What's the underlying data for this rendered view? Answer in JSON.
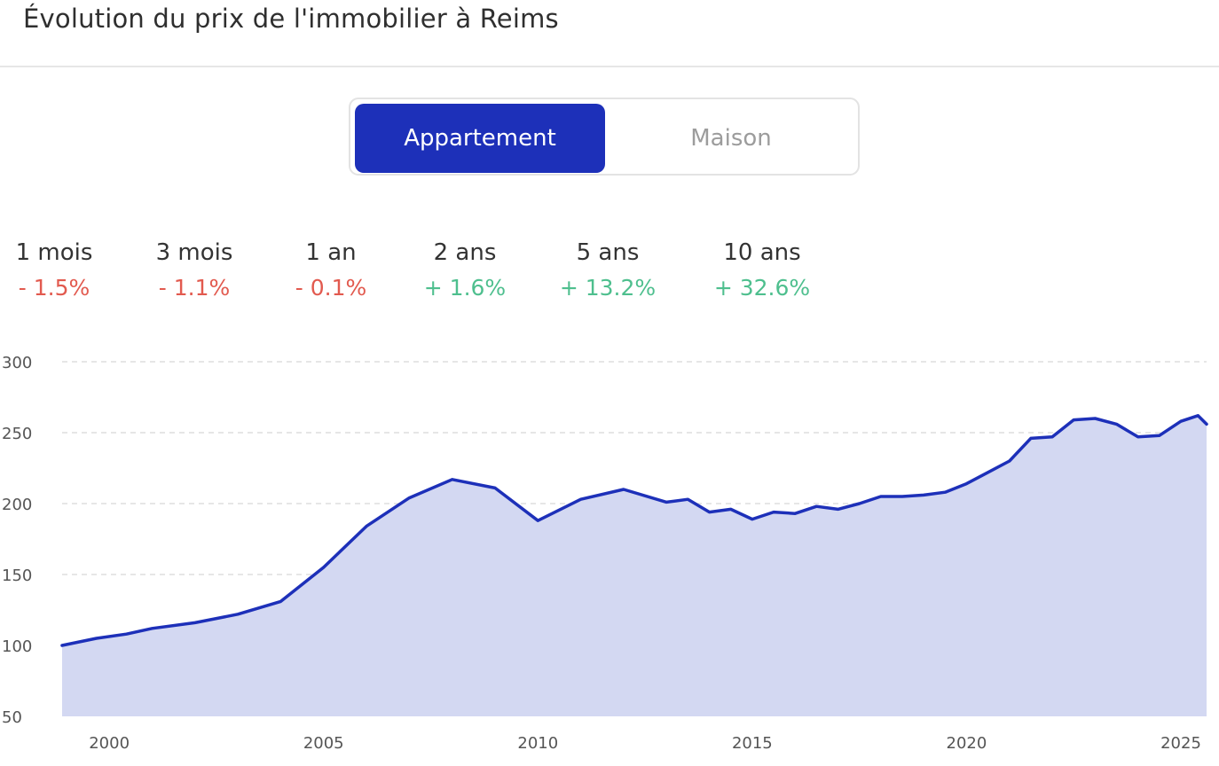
{
  "header": {
    "title": "Évolution du prix de l'immobilier à Reims"
  },
  "toggle": {
    "options": [
      "Appartement",
      "Maison"
    ],
    "selected": "Appartement"
  },
  "stats": [
    {
      "label": "1 mois",
      "value": "- 1.5%",
      "trend": "negative"
    },
    {
      "label": "3 mois",
      "value": "- 1.1%",
      "trend": "negative"
    },
    {
      "label": "1 an",
      "value": "- 0.1%",
      "trend": "negative"
    },
    {
      "label": "2 ans",
      "value": "+ 1.6%",
      "trend": "positive"
    },
    {
      "label": "5 ans",
      "value": "+ 13.2%",
      "trend": "positive"
    },
    {
      "label": "10 ans",
      "value": "+ 32.6%",
      "trend": "positive"
    }
  ],
  "colors": {
    "accent": "#1d30b9",
    "area_fill": "#d3d8f2",
    "negative": "#e25a4f",
    "positive": "#4ebf8e",
    "grid": "#dddddd"
  },
  "chart_data": {
    "type": "area",
    "title": "",
    "xlabel": "",
    "ylabel": "",
    "xlim": [
      1998.9,
      2025.6
    ],
    "ylim": [
      50,
      300
    ],
    "y_ticks": [
      300,
      250,
      200,
      150,
      100,
      50
    ],
    "x_ticks": [
      2000,
      2005,
      2010,
      2015,
      2020,
      2025
    ],
    "grid": true,
    "grid_style": "dashed",
    "x_tick_positions": [
      2000,
      2005,
      2010,
      2015,
      2020,
      2025
    ],
    "series": [
      {
        "x": [
          1998.9,
          1999.7,
          2000.4,
          2001.0,
          2002.0,
          2003.0,
          2004.0,
          2005.0,
          2006.0,
          2007.0,
          2008.0,
          2009.0,
          2010.0,
          2011.0,
          2012.0,
          2013.0,
          2013.5,
          2014.0,
          2014.5,
          2015.0,
          2015.5,
          2016.0,
          2016.5,
          2017.0,
          2017.5,
          2018.0,
          2018.5,
          2019.0,
          2019.5,
          2020.0,
          2020.5,
          2021.0,
          2021.5,
          2022.0,
          2022.5,
          2023.0,
          2023.5,
          2024.0,
          2024.5,
          2025.0,
          2025.4,
          2025.6
        ],
        "values": [
          100,
          105,
          108,
          112,
          116,
          122,
          131,
          155,
          184,
          204,
          217,
          211,
          188,
          203,
          210,
          201,
          203,
          194,
          196,
          189,
          194,
          193,
          198,
          196,
          200,
          205,
          205,
          206,
          208,
          214,
          222,
          230,
          246,
          247,
          259,
          260,
          256,
          247,
          248,
          258,
          262,
          256
        ]
      }
    ]
  }
}
